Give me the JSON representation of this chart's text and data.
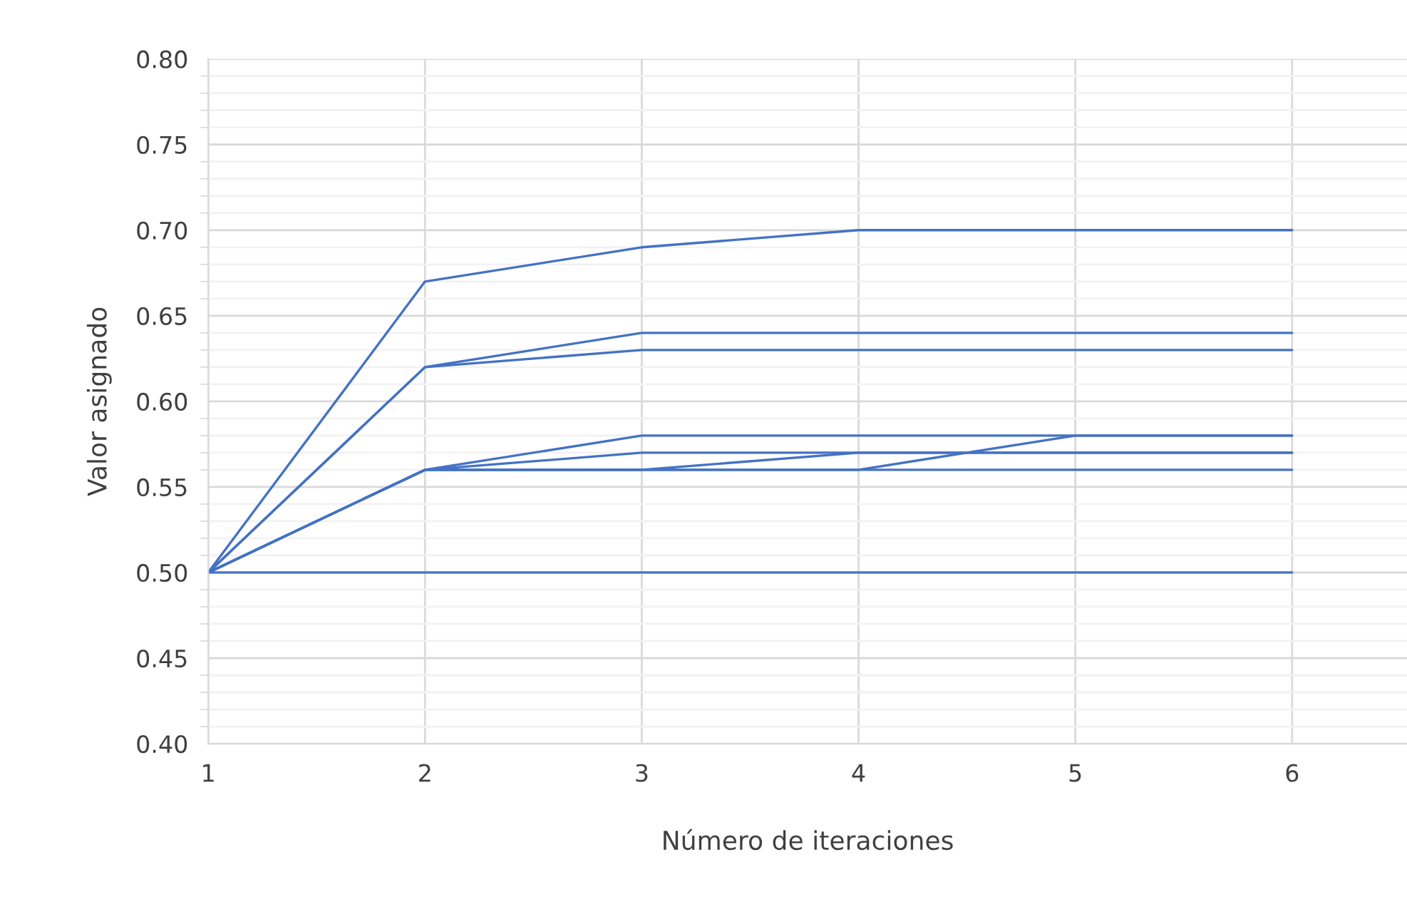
{
  "chart_data": {
    "type": "line",
    "xlabel": "Número de iteraciones",
    "ylabel": "Valor asignado",
    "x": [
      1,
      2,
      3,
      4,
      5,
      6
    ],
    "series": [
      {
        "color": "#4472c4",
        "values": [
          0.5,
          0.5,
          0.5,
          0.5,
          0.5,
          0.5
        ]
      },
      {
        "color": "#4472c4",
        "values": [
          0.5,
          0.67,
          0.69,
          0.7,
          0.7,
          0.7
        ]
      },
      {
        "color": "#4472c4",
        "values": [
          0.5,
          0.62,
          0.64,
          0.64,
          0.64,
          0.64
        ]
      },
      {
        "color": "#4472c4",
        "values": [
          0.5,
          0.62,
          0.63,
          0.63,
          0.63,
          0.63
        ]
      },
      {
        "color": "#4472c4",
        "values": [
          0.5,
          0.56,
          0.58,
          0.58,
          0.58,
          0.58
        ]
      },
      {
        "color": "#4472c4",
        "values": [
          0.5,
          0.56,
          0.57,
          0.57,
          0.57,
          0.57
        ]
      },
      {
        "color": "#4472c4",
        "values": [
          0.5,
          0.56,
          0.56,
          0.57,
          0.57,
          0.57
        ]
      },
      {
        "color": "#4472c4",
        "values": [
          0.5,
          0.56,
          0.56,
          0.56,
          0.58,
          0.58
        ]
      },
      {
        "color": "#4472c4",
        "values": [
          0.5,
          0.56,
          0.56,
          0.56,
          0.56,
          0.56
        ]
      }
    ],
    "xlim": [
      1,
      6.53
    ],
    "xticks": [
      1,
      2,
      3,
      4,
      5,
      6
    ],
    "ylim": [
      0.4,
      0.8
    ],
    "yticks": [
      {
        "value": 0.4,
        "label": "0.40"
      },
      {
        "value": 0.45,
        "label": "0.45"
      },
      {
        "value": 0.5,
        "label": "0.50"
      },
      {
        "value": 0.55,
        "label": "0.55"
      },
      {
        "value": 0.6,
        "label": "0.60"
      },
      {
        "value": 0.65,
        "label": "0.65"
      },
      {
        "value": 0.7,
        "label": "0.70"
      },
      {
        "value": 0.75,
        "label": "0.75"
      },
      {
        "value": 0.8,
        "label": "0.80"
      }
    ],
    "grid": true,
    "legend": false,
    "marker": "none",
    "line_style": "solid"
  }
}
